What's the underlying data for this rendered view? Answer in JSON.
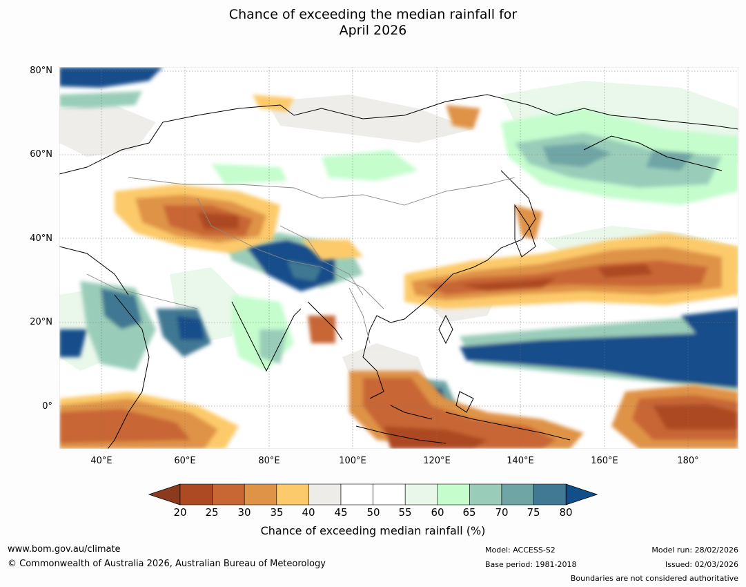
{
  "title_line1": "Chance of exceeding the median rainfall for",
  "title_line2": "April 2026",
  "map": {
    "lat_labels": [
      "80°N",
      "60°N",
      "40°N",
      "20°N",
      "0°"
    ],
    "lon_labels": [
      "40°E",
      "60°E",
      "80°E",
      "100°E",
      "120°E",
      "140°E",
      "160°E",
      "180°"
    ],
    "lat_range": [
      -10,
      80
    ],
    "lon_range": [
      30,
      192
    ]
  },
  "colorbar": {
    "ticks": [
      "20",
      "25",
      "30",
      "35",
      "40",
      "45",
      "50",
      "55",
      "60",
      "65",
      "70",
      "75",
      "80"
    ],
    "colors": [
      "#8b3a1e",
      "#ad4a24",
      "#c86634",
      "#df9346",
      "#fcca6b",
      "#eeece8",
      "#ffffff",
      "#ffffff",
      "#e9f7ea",
      "#c5fdcd",
      "#9acdb9",
      "#6fa5a5",
      "#417893",
      "#124e8a"
    ],
    "label": "Chance of exceeding median rainfall (%)"
  },
  "footer": {
    "url": "www.bom.gov.au/climate",
    "copyright": "© Commonwealth of Australia 2026, Australian Bureau of Meteorology",
    "model": "Model: ACCESS-S2",
    "base_period": "Base period: 1981-2018",
    "model_run": "Model run: 28/02/2026",
    "issued": "Issued: 02/03/2026",
    "disclaimer": "Boundaries are not considered authoritative"
  }
}
